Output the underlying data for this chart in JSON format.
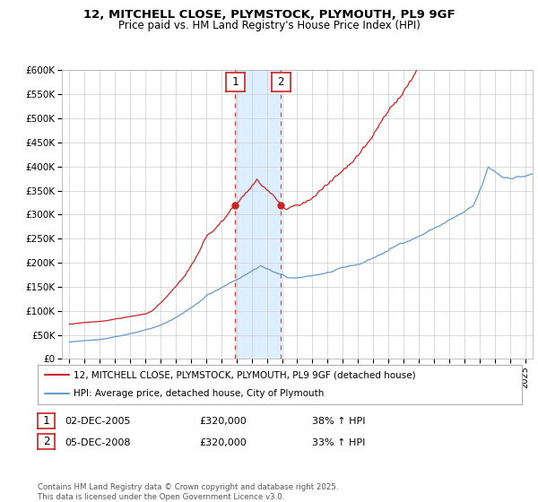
{
  "title": "12, MITCHELL CLOSE, PLYMSTOCK, PLYMOUTH, PL9 9GF",
  "subtitle": "Price paid vs. HM Land Registry's House Price Index (HPI)",
  "ylabel_ticks": [
    "£0",
    "£50K",
    "£100K",
    "£150K",
    "£200K",
    "£250K",
    "£300K",
    "£350K",
    "£400K",
    "£450K",
    "£500K",
    "£550K",
    "£600K"
  ],
  "ytick_vals": [
    0,
    50000,
    100000,
    150000,
    200000,
    250000,
    300000,
    350000,
    400000,
    450000,
    500000,
    550000,
    600000
  ],
  "hpi_color": "#6699cc",
  "price_color": "#cc2222",
  "marker_color": "#cc2222",
  "shade_color": "#ddeeff",
  "marker1_x": 2005.92,
  "marker1_y": 320000,
  "marker2_x": 2008.92,
  "marker2_y": 320000,
  "vline1_x": 2005.92,
  "vline2_x": 2008.92,
  "legend1": "12, MITCHELL CLOSE, PLYMSTOCK, PLYMOUTH, PL9 9GF (detached house)",
  "legend2": "HPI: Average price, detached house, City of Plymouth",
  "table_row1": [
    "1",
    "02-DEC-2005",
    "£320,000",
    "38% ↑ HPI"
  ],
  "table_row2": [
    "2",
    "05-DEC-2008",
    "£320,000",
    "33% ↑ HPI"
  ],
  "footer": "Contains HM Land Registry data © Crown copyright and database right 2025.\nThis data is licensed under the Open Government Licence v3.0.",
  "xlim": [
    1994.5,
    2025.5
  ],
  "ylim": [
    0,
    600000
  ],
  "background_color": "#ffffff",
  "grid_color": "#cccccc"
}
